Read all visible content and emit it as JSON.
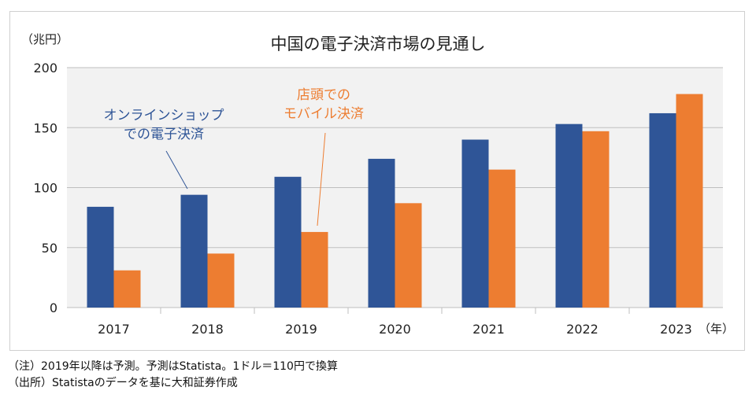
{
  "chart_data": {
    "type": "bar",
    "title": "中国の電子決済市場の見通し",
    "ylabel": "（兆円）",
    "xlabel": "（年）",
    "categories": [
      "2017",
      "2018",
      "2019",
      "2020",
      "2021",
      "2022",
      "2023"
    ],
    "series": [
      {
        "name": "オンラインショップでの電子決済",
        "values": [
          84,
          94,
          109,
          124,
          140,
          153,
          162
        ],
        "color": "#2F5597"
      },
      {
        "name": "店頭でのモバイル決済",
        "values": [
          31,
          45,
          63,
          87,
          115,
          147,
          178
        ],
        "color": "#ED7D31"
      }
    ],
    "ylim": [
      0,
      200
    ],
    "yticks": [
      "0",
      "50",
      "100",
      "150",
      "200"
    ],
    "grid": true,
    "plot_background": "#F2F2F2",
    "annotations": [
      {
        "series": 0,
        "lines": [
          "オンラインショップ",
          "での電子決済"
        ],
        "color": "#2F5597",
        "points_to": "2018"
      },
      {
        "series": 1,
        "lines": [
          "店頭での",
          "モバイル決済"
        ],
        "color": "#ED7D31",
        "points_to": "2019"
      }
    ]
  },
  "notes": [
    "（注）2019年以降は予測。予測はStatista。1ドル＝110円で換算",
    "（出所）Statistaのデータを基に大和証券作成"
  ]
}
